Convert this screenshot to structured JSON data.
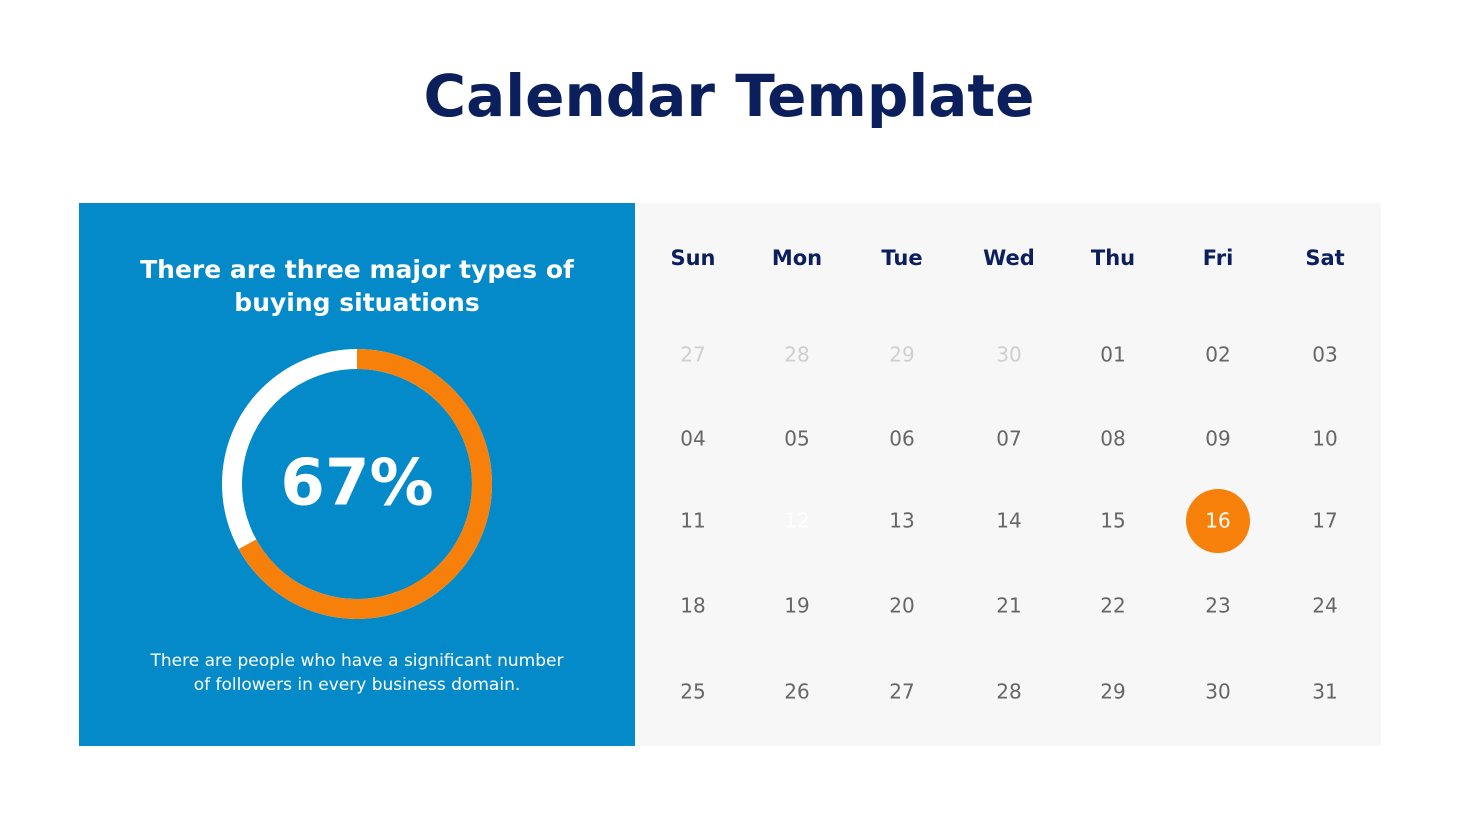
{
  "header": {
    "title": "Calendar Template"
  },
  "panel": {
    "heading": [
      "There are three major types of",
      "buying situations"
    ],
    "donut": {
      "value": 67,
      "label": "67%",
      "range": [
        0,
        100
      ],
      "color": "#f7800a",
      "track_color": "#ffffff"
    },
    "body": [
      "There are people who have a significant number",
      "of followers in every business domain."
    ]
  },
  "calendar": {
    "days": [
      "Sun",
      "Mon",
      "Tue",
      "Wed",
      "Thu",
      "Fri",
      "Sat"
    ],
    "weeks": [
      [
        "27",
        "28",
        "29",
        "30",
        "01",
        "02",
        "03"
      ],
      [
        "04",
        "05",
        "06",
        "07",
        "08",
        "09",
        "10"
      ],
      [
        "11",
        "12",
        "13",
        "14",
        "15",
        "16",
        "17"
      ],
      [
        "18",
        "19",
        "20",
        "21",
        "22",
        "23",
        "24"
      ],
      [
        "25",
        "26",
        "27",
        "28",
        "29",
        "30",
        "31"
      ]
    ],
    "muted_cells": [
      [
        0,
        0
      ],
      [
        0,
        1
      ],
      [
        0,
        2
      ],
      [
        0,
        3
      ]
    ],
    "faded_cells": [
      [
        2,
        1
      ]
    ],
    "highlight_cell": [
      2,
      5
    ],
    "highlight_color": "#f7800a"
  }
}
